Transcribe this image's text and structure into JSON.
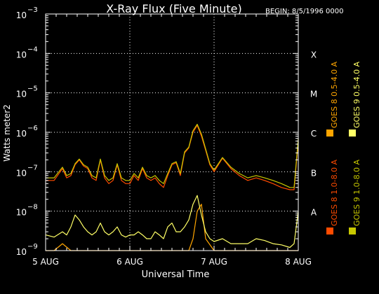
{
  "chart_data": {
    "type": "line",
    "title": "X-Ray Flux (Five Minute)",
    "begin_label": "BEGIN: 8/5/1996 0000",
    "xlabel": "Universal Time",
    "ylabel": "Watts meter2",
    "x_unit": "days since 1996-08-05 00:00 UT",
    "xlim": [
      0,
      3
    ],
    "ylim": [
      1e-09,
      0.001
    ],
    "yscale": "log",
    "x_ticks": [
      {
        "x": 0,
        "label": "5 AUG"
      },
      {
        "x": 1,
        "label": "6 AUG"
      },
      {
        "x": 2,
        "label": "7 AUG"
      },
      {
        "x": 3,
        "label": "8 AUG"
      }
    ],
    "y_ticks": [
      {
        "y": 1e-09,
        "base": "10",
        "exp": "−9"
      },
      {
        "y": 1e-08,
        "base": "10",
        "exp": "−8"
      },
      {
        "y": 1e-07,
        "base": "10",
        "exp": "−7"
      },
      {
        "y": 1e-06,
        "base": "10",
        "exp": "−6"
      },
      {
        "y": 1e-05,
        "base": "10",
        "exp": "−5"
      },
      {
        "y": 0.0001,
        "base": "10",
        "exp": "−4"
      },
      {
        "y": 0.001,
        "base": "10",
        "exp": "−3"
      }
    ],
    "flare_classes": [
      {
        "label": "A",
        "y": 1e-08
      },
      {
        "label": "B",
        "y": 1e-07
      },
      {
        "label": "C",
        "y": 1e-06
      },
      {
        "label": "M",
        "y": 1e-05
      },
      {
        "label": "X",
        "y": 0.0001
      }
    ],
    "grid": {
      "horizontal_dotted": [
        1e-08,
        1e-07,
        1e-06,
        1e-05,
        0.0001
      ],
      "vertical_dotted": [
        1,
        2
      ]
    },
    "series": [
      {
        "name": "GOES 8 1.0-8.0 A",
        "color": "#ff4b00",
        "x": [
          0,
          0.1,
          0.2,
          0.25,
          0.3,
          0.35,
          0.4,
          0.45,
          0.5,
          0.55,
          0.6,
          0.65,
          0.7,
          0.75,
          0.8,
          0.85,
          0.9,
          0.95,
          1.0,
          1.05,
          1.1,
          1.15,
          1.2,
          1.25,
          1.3,
          1.35,
          1.4,
          1.45,
          1.5,
          1.55,
          1.6,
          1.65,
          1.7,
          1.75,
          1.8,
          1.85,
          1.9,
          1.95,
          2.0,
          2.1,
          2.2,
          2.3,
          2.4,
          2.5,
          2.6,
          2.7,
          2.8,
          2.9,
          2.95,
          3.0
        ],
        "y": [
          6e-08,
          6e-08,
          1.2e-07,
          7e-08,
          8e-08,
          1.5e-07,
          2e-07,
          1.4e-07,
          1.2e-07,
          7e-08,
          6e-08,
          2e-07,
          7e-08,
          5e-08,
          6e-08,
          1.5e-07,
          6e-08,
          5e-08,
          5e-08,
          8e-08,
          6e-08,
          1.2e-07,
          7e-08,
          6e-08,
          7e-08,
          5e-08,
          4e-08,
          8e-08,
          1.5e-07,
          1.7e-07,
          8e-08,
          3e-07,
          4e-07,
          1e-06,
          1.5e-06,
          8e-07,
          3.5e-07,
          1.5e-07,
          1e-07,
          2.2e-07,
          1.2e-07,
          8e-08,
          6e-08,
          7e-08,
          6e-08,
          5e-08,
          4e-08,
          3.5e-08,
          3.5e-08,
          6e-07
        ]
      },
      {
        "name": "GOES 8 0.5-4.0 A",
        "color": "#ffa500",
        "x": [
          0,
          0.1,
          0.2,
          0.3,
          0.4,
          0.5,
          0.6,
          0.7,
          0.8,
          0.9,
          1.0,
          1.1,
          1.2,
          1.3,
          1.4,
          1.5,
          1.6,
          1.7,
          1.75,
          1.8,
          1.85,
          1.9,
          2.0,
          2.1,
          2.2,
          2.3,
          2.4,
          2.5,
          2.6,
          2.7,
          2.8,
          2.9,
          3.0
        ],
        "y": [
          1e-09,
          1e-09,
          1.5e-09,
          1e-09,
          1e-09,
          1e-09,
          1e-09,
          1e-09,
          1e-09,
          1e-09,
          1e-09,
          1e-09,
          1e-09,
          1e-09,
          1e-09,
          1e-09,
          1e-09,
          1e-09,
          2e-09,
          1e-08,
          1.5e-08,
          2e-09,
          1e-09,
          1e-09,
          1e-09,
          1e-09,
          1e-09,
          1e-09,
          1e-09,
          1e-09,
          1e-09,
          1e-09,
          1e-09
        ]
      },
      {
        "name": "GOES 9 1.0-8.0 A",
        "color": "#c8c800",
        "x": [
          0,
          0.1,
          0.2,
          0.25,
          0.3,
          0.35,
          0.4,
          0.45,
          0.5,
          0.55,
          0.6,
          0.65,
          0.7,
          0.75,
          0.8,
          0.85,
          0.9,
          0.95,
          1.0,
          1.05,
          1.1,
          1.15,
          1.2,
          1.25,
          1.3,
          1.35,
          1.4,
          1.45,
          1.5,
          1.55,
          1.6,
          1.65,
          1.7,
          1.75,
          1.8,
          1.85,
          1.9,
          1.95,
          2.0,
          2.1,
          2.2,
          2.3,
          2.4,
          2.5,
          2.6,
          2.7,
          2.8,
          2.9,
          2.95,
          3.0
        ],
        "y": [
          7e-08,
          7e-08,
          1.3e-07,
          8e-08,
          9e-08,
          1.6e-07,
          2.1e-07,
          1.5e-07,
          1.3e-07,
          8e-08,
          7e-08,
          2.1e-07,
          8e-08,
          6e-08,
          7e-08,
          1.6e-07,
          7e-08,
          6e-08,
          6e-08,
          9e-08,
          7e-08,
          1.3e-07,
          8e-08,
          7e-08,
          8e-08,
          6e-08,
          5e-08,
          9e-08,
          1.6e-07,
          1.8e-07,
          9e-08,
          3.2e-07,
          4.2e-07,
          1.1e-06,
          1.6e-06,
          9e-07,
          3.8e-07,
          1.6e-07,
          1.1e-07,
          2.3e-07,
          1.3e-07,
          9e-08,
          7e-08,
          8e-08,
          7e-08,
          6e-08,
          5e-08,
          4e-08,
          4e-08,
          7e-07
        ]
      },
      {
        "name": "GOES 9 0.5-4.0 A",
        "color": "#ffff66",
        "x": [
          0,
          0.1,
          0.2,
          0.25,
          0.3,
          0.35,
          0.4,
          0.45,
          0.5,
          0.55,
          0.6,
          0.65,
          0.7,
          0.75,
          0.8,
          0.85,
          0.9,
          0.95,
          1.0,
          1.05,
          1.1,
          1.15,
          1.2,
          1.25,
          1.3,
          1.35,
          1.4,
          1.45,
          1.5,
          1.55,
          1.6,
          1.65,
          1.7,
          1.75,
          1.8,
          1.85,
          1.9,
          1.95,
          2.0,
          2.1,
          2.2,
          2.3,
          2.4,
          2.5,
          2.6,
          2.7,
          2.8,
          2.9,
          2.95,
          3.0
        ],
        "y": [
          2.5e-09,
          2.2e-09,
          3e-09,
          2.5e-09,
          4e-09,
          8e-09,
          6e-09,
          4e-09,
          3e-09,
          2.5e-09,
          3e-09,
          5e-09,
          3e-09,
          2.5e-09,
          3e-09,
          4e-09,
          2.5e-09,
          2.2e-09,
          2.5e-09,
          2.5e-09,
          3e-09,
          2.5e-09,
          2e-09,
          2e-09,
          3e-09,
          2.5e-09,
          2e-09,
          4e-09,
          5e-09,
          3e-09,
          3e-09,
          4e-09,
          6e-09,
          1.5e-08,
          2.5e-08,
          8e-09,
          3e-09,
          2e-09,
          1.7e-09,
          2e-09,
          1.5e-09,
          1.5e-09,
          1.5e-09,
          2e-09,
          1.8e-09,
          1.5e-09,
          1.4e-09,
          1.2e-09,
          1.5e-09,
          1e-08
        ]
      }
    ]
  }
}
